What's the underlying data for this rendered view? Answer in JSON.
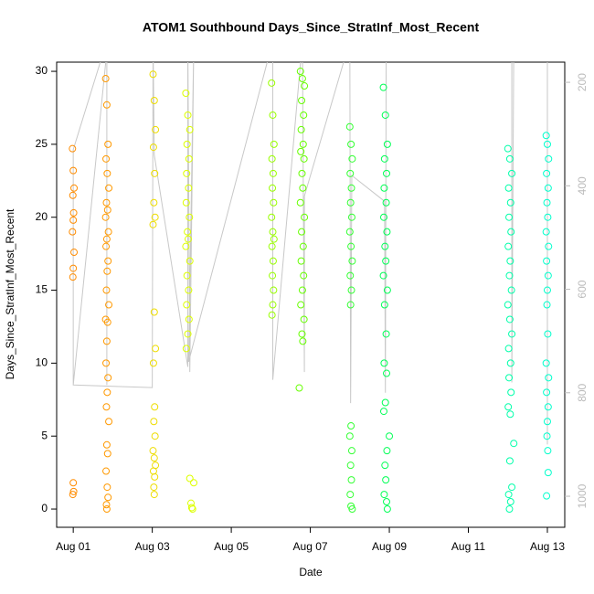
{
  "chart_data": {
    "type": "scatter",
    "title": "ATOM1 Southbound Days_Since_StratInf_Most_Recent",
    "xlabel": "Date",
    "ylabel": "Days_Since_StratInf_Most_Recent",
    "xlim": [
      0.58,
      13.44
    ],
    "xticks": [
      {
        "value": 1,
        "label": "Aug 01"
      },
      {
        "value": 3,
        "label": "Aug 03"
      },
      {
        "value": 5,
        "label": "Aug 05"
      },
      {
        "value": 7,
        "label": "Aug 07"
      },
      {
        "value": 9,
        "label": "Aug 09"
      },
      {
        "value": 11,
        "label": "Aug 11"
      },
      {
        "value": 13,
        "label": "Aug 13"
      }
    ],
    "ylim": [
      -1.25,
      30.63
    ],
    "yticks": [
      0,
      5,
      10,
      15,
      20,
      25,
      30
    ],
    "y2lim": [
      1060,
      161
    ],
    "y2ticks": [
      200,
      400,
      600,
      800,
      1000
    ],
    "y2color": "#bbbbbb",
    "series": [
      {
        "kind": "line",
        "axis": "y2",
        "color": "#c8c8c8",
        "x": [
          1.0,
          1.0,
          1.85,
          1.85,
          1.85,
          1.0,
          3.0,
          3.02,
          3.05,
          3.9,
          3.9,
          3.95,
          4.05,
          3.92,
          6.05,
          6.05,
          6.8,
          6.85,
          6.85,
          8.0,
          8.02,
          8.05,
          8.88,
          8.9,
          8.92,
          12.1,
          12.1,
          12.15,
          13.0,
          13.0
        ],
        "values": [
          785,
          330,
          120,
          785,
          140,
          785,
          790,
          120,
          340,
          750,
          120,
          760,
          130,
          740,
          120,
          775,
          120,
          760,
          420,
          120,
          820,
          380,
          430,
          800,
          140,
          120,
          780,
          120,
          140,
          900
        ]
      },
      {
        "color": "#ff8c00",
        "x": [
          0.98,
          1.0,
          1.02,
          0.99,
          1.01,
          1.0,
          0.98,
          1.02,
          1.0,
          0.99,
          1.0,
          1.01,
          0.99
        ],
        "values": [
          24.7,
          23.2,
          22,
          21.5,
          20.3,
          19.8,
          19,
          17.6,
          16.5,
          15.9,
          1.8,
          1.2,
          1.0
        ]
      },
      {
        "color": "#ff9900",
        "x": [
          1.82,
          1.85,
          1.88,
          1.83,
          1.86,
          1.9,
          1.84,
          1.87,
          1.82,
          1.89,
          1.85,
          1.83,
          1.88,
          1.86,
          1.84,
          1.9,
          1.82,
          1.87,
          1.85,
          1.83,
          1.88,
          1.86,
          1.84,
          1.9,
          1.85,
          1.87,
          1.83,
          1.86,
          1.88,
          1.84,
          1.85
        ],
        "values": [
          29.5,
          27.7,
          25,
          24,
          23,
          22,
          21,
          20.5,
          20,
          19,
          18.5,
          18,
          17,
          16.3,
          15,
          14,
          13,
          12.8,
          11.5,
          10,
          9,
          8,
          7,
          6,
          4.4,
          3.8,
          2.6,
          1.5,
          0.8,
          0.3,
          0
        ]
      },
      {
        "color": "#eedd00",
        "x": [
          3.02,
          3.05,
          3.08,
          3.03,
          3.06,
          3.04,
          3.07,
          3.02,
          3.05,
          3.08,
          3.03,
          3.06,
          3.04,
          3.07,
          3.02,
          3.05,
          3.08,
          3.03,
          3.06,
          3.04,
          3.05
        ],
        "values": [
          29.8,
          28,
          26,
          24.8,
          23,
          21,
          20,
          19.5,
          13.5,
          11,
          10,
          7,
          6,
          5,
          4,
          3.5,
          3,
          2.6,
          2.2,
          1.5,
          1.0
        ]
      },
      {
        "color": "#ddff00",
        "x": [
          3.85,
          3.9,
          3.95,
          3.88,
          3.93,
          3.87,
          3.92,
          3.86,
          3.94,
          3.89,
          3.91,
          3.85,
          3.95,
          3.88,
          3.92,
          3.87,
          3.93,
          3.9,
          3.86,
          3.95,
          4.05,
          3.98,
          4.0,
          4.02
        ],
        "values": [
          28.5,
          27,
          26,
          25,
          24,
          23,
          22,
          21,
          20,
          19,
          18.5,
          18,
          17,
          16,
          15,
          14,
          13,
          12,
          11,
          2.1,
          1.8,
          0.4,
          0.1,
          0
        ]
      },
      {
        "color": "#99ff00",
        "x": [
          6.02,
          6.05,
          6.08,
          6.03,
          6.06,
          6.04,
          6.07,
          6.02,
          6.05,
          6.08,
          6.03,
          6.06,
          6.04,
          6.07,
          6.05,
          6.03
        ],
        "values": [
          29.2,
          27,
          25,
          24,
          23,
          22,
          21,
          20,
          19,
          18.5,
          18,
          17,
          16,
          15,
          14,
          13.3
        ]
      },
      {
        "color": "#66ff00",
        "x": [
          6.75,
          6.8,
          6.85,
          6.78,
          6.83,
          6.77,
          6.82,
          6.76,
          6.84,
          6.79,
          6.81,
          6.75,
          6.85,
          6.78,
          6.82,
          6.77,
          6.83,
          6.8,
          6.76,
          6.84,
          6.79,
          6.81,
          6.72
        ],
        "values": [
          30,
          29.5,
          29,
          28,
          27,
          26,
          25,
          24.5,
          24,
          23,
          22,
          21,
          20,
          19,
          18,
          17,
          16,
          15,
          14,
          13,
          12,
          11.5,
          8.3
        ]
      },
      {
        "color": "#33ff33",
        "x": [
          8.0,
          8.03,
          8.06,
          8.01,
          8.04,
          8.02,
          8.05,
          8.0,
          8.03,
          8.06,
          8.01,
          8.04,
          8.02,
          8.03,
          8.0,
          8.05,
          8.02,
          8.04,
          8.01,
          8.03,
          8.06
        ],
        "values": [
          26.2,
          25,
          24,
          23,
          22,
          21,
          20,
          19,
          18,
          17,
          16,
          15,
          14,
          5.7,
          5,
          4,
          3,
          2,
          1,
          0.2,
          0
        ]
      },
      {
        "color": "#00ff55",
        "x": [
          8.85,
          8.9,
          8.95,
          8.88,
          8.93,
          8.87,
          8.92,
          8.86,
          8.94,
          8.89,
          8.91,
          8.85,
          8.95,
          8.88,
          8.92,
          8.87,
          8.93,
          8.9,
          8.86,
          9.0,
          8.94,
          8.89,
          8.91,
          8.87,
          8.93,
          8.95
        ],
        "values": [
          28.9,
          27,
          25,
          24,
          23,
          22,
          21,
          20,
          19,
          18,
          17,
          16,
          15,
          14,
          12,
          10,
          9.3,
          7.3,
          6.7,
          5,
          4,
          3,
          2,
          1,
          0.5,
          0
        ]
      },
      {
        "color": "#00ffaa",
        "x": [
          12.0,
          12.05,
          12.1,
          12.02,
          12.07,
          12.03,
          12.08,
          12.01,
          12.06,
          12.04,
          12.09,
          12.0,
          12.05,
          12.1,
          12.02,
          12.07,
          12.03,
          12.08,
          12.01,
          12.06,
          12.15,
          12.05,
          12.1,
          12.02,
          12.07,
          12.04
        ],
        "values": [
          24.7,
          24,
          23,
          22,
          21,
          20,
          19,
          18,
          17,
          16,
          15,
          14,
          13,
          12,
          11,
          10,
          9,
          8,
          7,
          6.5,
          4.5,
          3.3,
          1.5,
          1,
          0.5,
          0
        ]
      },
      {
        "color": "#00ffcc",
        "x": [
          12.97,
          13.0,
          13.03,
          12.98,
          13.02,
          12.99,
          13.01,
          12.97,
          13.03,
          12.98,
          13.02,
          13.0,
          12.99,
          13.01,
          12.97,
          13.03,
          12.98,
          13.02,
          13.0,
          12.99,
          13.01,
          13.02,
          12.98
        ],
        "values": [
          25.6,
          25,
          24,
          23,
          22,
          21,
          20,
          19,
          18,
          17,
          16,
          15,
          14,
          12,
          10,
          9,
          8,
          7,
          6,
          5,
          4,
          2.5,
          0.9
        ]
      }
    ]
  }
}
